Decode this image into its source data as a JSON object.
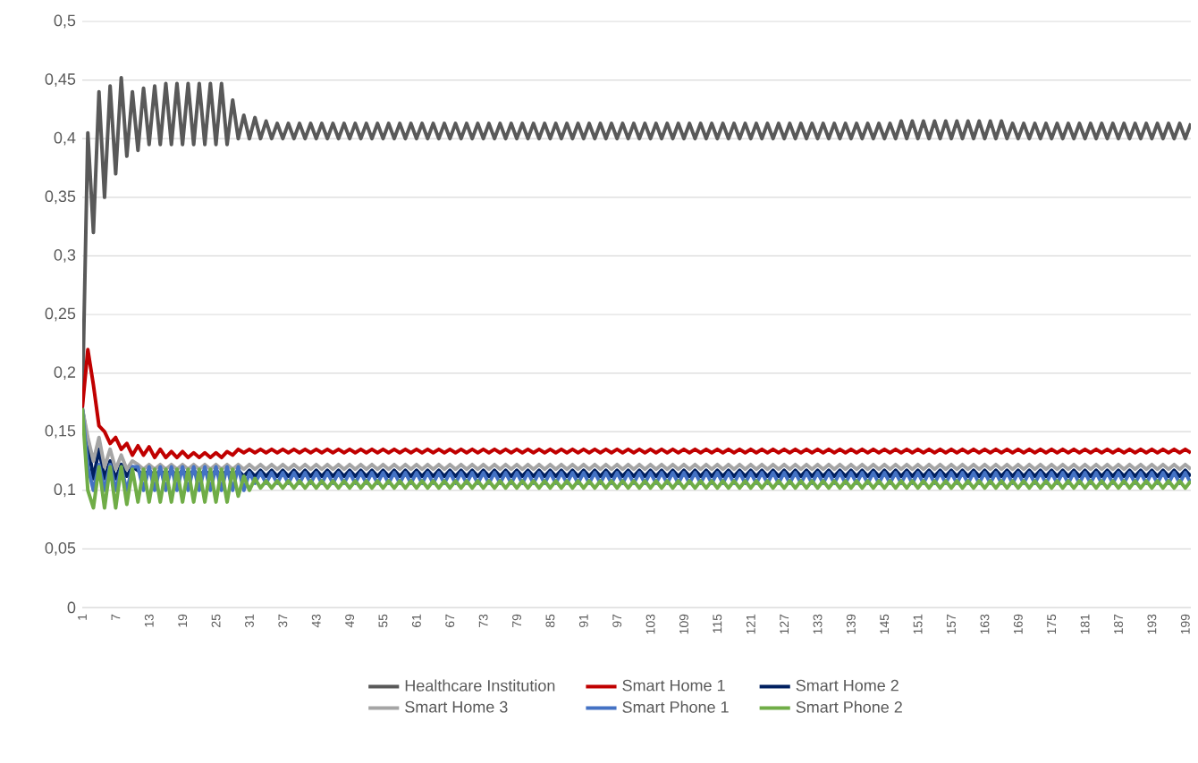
{
  "chart_data": {
    "type": "line",
    "categories": [
      "1",
      null,
      null,
      null,
      null,
      null,
      "7",
      null,
      null,
      null,
      null,
      null,
      "13",
      null,
      null,
      null,
      null,
      null,
      "19",
      null,
      null,
      null,
      null,
      null,
      "25",
      null,
      null,
      null,
      null,
      null,
      "31",
      null,
      null,
      null,
      null,
      null,
      "37",
      null,
      null,
      null,
      null,
      null,
      "43",
      null,
      null,
      null,
      null,
      null,
      "49",
      null,
      null,
      null,
      null,
      null,
      "55",
      null,
      null,
      null,
      null,
      null,
      "61",
      null,
      null,
      null,
      null,
      null,
      "67",
      null,
      null,
      null,
      null,
      null,
      "73",
      null,
      null,
      null,
      null,
      null,
      "79",
      null,
      null,
      null,
      null,
      null,
      "85",
      null,
      null,
      null,
      null,
      null,
      "91",
      null,
      null,
      null,
      null,
      null,
      "97",
      null,
      null,
      null,
      null,
      null,
      "103",
      null,
      null,
      null,
      null,
      null,
      "109",
      null,
      null,
      null,
      null,
      null,
      "115",
      null,
      null,
      null,
      null,
      null,
      "121",
      null,
      null,
      null,
      null,
      null,
      "127",
      null,
      null,
      null,
      null,
      null,
      "133",
      null,
      null,
      null,
      null,
      null,
      "139",
      null,
      null,
      null,
      null,
      null,
      "145",
      null,
      null,
      null,
      null,
      null,
      "151",
      null,
      null,
      null,
      null,
      null,
      "157",
      null,
      null,
      null,
      null,
      null,
      "163",
      null,
      null,
      null,
      null,
      null,
      "169",
      null,
      null,
      null,
      null,
      null,
      "175",
      null,
      null,
      null,
      null,
      null,
      "181",
      null,
      null,
      null,
      null,
      null,
      "187",
      null,
      null,
      null,
      null,
      null,
      "193",
      null,
      null,
      null,
      null,
      null,
      "199",
      null
    ],
    "ylim": [
      0,
      0.5
    ],
    "yticks": [
      0,
      {
        "value": 0.05,
        "label": "0,05"
      },
      {
        "value": 0.1,
        "label": "0,1"
      },
      {
        "value": 0.15,
        "label": "0,15"
      },
      {
        "value": 0.2,
        "label": "0,2"
      },
      {
        "value": 0.25,
        "label": "0,25"
      },
      {
        "value": 0.3,
        "label": "0,3"
      },
      {
        "value": 0.35,
        "label": "0,35"
      },
      {
        "value": 0.4,
        "label": "0,4"
      },
      {
        "value": 0.45,
        "label": "0,45"
      },
      {
        "value": 0.5,
        "label": "0,5"
      }
    ],
    "grid": "y",
    "legend": "bottom",
    "marker": "none",
    "line_style": "solid",
    "series": [
      {
        "name": "Healthcare Institution",
        "color": "#595959",
        "values": [
          0.17,
          0.405,
          0.32,
          0.44,
          0.35,
          0.445,
          0.37,
          0.452,
          0.385,
          0.44,
          0.39,
          0.443,
          0.395,
          0.445,
          0.395,
          0.447,
          0.395,
          0.447,
          0.395,
          0.447,
          0.395,
          0.447,
          0.395,
          0.447,
          0.395,
          0.447,
          0.395,
          0.433,
          0.4,
          0.42,
          0.4,
          0.418,
          0.4,
          0.415,
          0.4,
          0.413,
          0.4,
          0.413,
          0.4,
          0.413,
          0.4,
          0.413,
          0.4,
          0.413,
          0.4,
          0.413,
          0.4,
          0.413,
          0.4,
          0.413,
          0.4,
          0.413,
          0.4,
          0.413,
          0.4,
          0.413,
          0.4,
          0.413,
          0.4,
          0.413,
          0.4,
          0.413,
          0.4,
          0.413,
          0.4,
          0.413,
          0.4,
          0.413,
          0.4,
          0.413,
          0.4,
          0.413,
          0.4,
          0.413,
          0.4,
          0.413,
          0.4,
          0.413,
          0.4,
          0.413,
          0.4,
          0.413,
          0.4,
          0.413,
          0.4,
          0.413,
          0.4,
          0.413,
          0.4,
          0.413,
          0.4,
          0.413,
          0.4,
          0.413,
          0.4,
          0.413,
          0.4,
          0.413,
          0.4,
          0.413,
          0.4,
          0.413,
          0.4,
          0.413,
          0.4,
          0.413,
          0.4,
          0.413,
          0.4,
          0.413,
          0.4,
          0.413,
          0.4,
          0.413,
          0.4,
          0.413,
          0.4,
          0.413,
          0.4,
          0.413,
          0.4,
          0.413,
          0.4,
          0.413,
          0.4,
          0.413,
          0.4,
          0.413,
          0.4,
          0.413,
          0.4,
          0.413,
          0.4,
          0.413,
          0.4,
          0.413,
          0.4,
          0.413,
          0.4,
          0.413,
          0.4,
          0.413,
          0.4,
          0.413,
          0.4,
          0.413,
          0.4,
          0.415,
          0.4,
          0.415,
          0.4,
          0.415,
          0.4,
          0.415,
          0.4,
          0.415,
          0.4,
          0.415,
          0.4,
          0.415,
          0.4,
          0.415,
          0.4,
          0.415,
          0.4,
          0.415,
          0.4,
          0.413,
          0.4,
          0.413,
          0.4,
          0.413,
          0.4,
          0.413,
          0.4,
          0.413,
          0.4,
          0.413,
          0.4,
          0.413,
          0.4,
          0.413,
          0.4,
          0.413,
          0.4,
          0.413,
          0.4,
          0.413,
          0.4,
          0.413,
          0.4,
          0.413,
          0.4,
          0.413,
          0.4,
          0.413,
          0.4,
          0.413,
          0.4,
          0.413
        ]
      },
      {
        "name": "Smart Home 1",
        "color": "#c00000",
        "values": [
          0.17,
          0.22,
          0.19,
          0.155,
          0.15,
          0.14,
          0.145,
          0.135,
          0.14,
          0.13,
          0.138,
          0.13,
          0.137,
          0.128,
          0.135,
          0.128,
          0.133,
          0.128,
          0.133,
          0.128,
          0.132,
          0.128,
          0.132,
          0.128,
          0.132,
          0.128,
          0.133,
          0.13,
          0.135,
          0.132,
          0.135,
          0.132,
          0.135,
          0.132,
          0.135,
          0.132,
          0.135,
          0.132,
          0.135,
          0.132,
          0.135,
          0.132,
          0.135,
          0.132,
          0.135,
          0.132,
          0.135,
          0.132,
          0.135,
          0.132,
          0.135,
          0.132,
          0.135,
          0.132,
          0.135,
          0.132,
          0.135,
          0.132,
          0.135,
          0.132,
          0.135,
          0.132,
          0.135,
          0.132,
          0.135,
          0.132,
          0.135,
          0.132,
          0.135,
          0.132,
          0.135,
          0.132,
          0.135,
          0.132,
          0.135,
          0.132,
          0.135,
          0.132,
          0.135,
          0.132,
          0.135,
          0.132,
          0.135,
          0.132,
          0.135,
          0.132,
          0.135,
          0.132,
          0.135,
          0.132,
          0.135,
          0.132,
          0.135,
          0.132,
          0.135,
          0.132,
          0.135,
          0.132,
          0.135,
          0.132,
          0.135,
          0.132,
          0.135,
          0.132,
          0.135,
          0.132,
          0.135,
          0.132,
          0.135,
          0.132,
          0.135,
          0.132,
          0.135,
          0.132,
          0.135,
          0.132,
          0.135,
          0.132,
          0.135,
          0.132,
          0.135,
          0.132,
          0.135,
          0.132,
          0.135,
          0.132,
          0.135,
          0.132,
          0.135,
          0.132,
          0.135,
          0.132,
          0.135,
          0.132,
          0.135,
          0.132,
          0.135,
          0.132,
          0.135,
          0.132,
          0.135,
          0.132,
          0.135,
          0.132,
          0.135,
          0.132,
          0.135,
          0.132,
          0.135,
          0.132,
          0.135,
          0.132,
          0.135,
          0.132,
          0.135,
          0.132,
          0.135,
          0.132,
          0.135,
          0.132,
          0.135,
          0.132,
          0.135,
          0.132,
          0.135,
          0.132,
          0.135,
          0.132,
          0.135,
          0.132,
          0.135,
          0.132,
          0.135,
          0.132,
          0.135,
          0.132,
          0.135,
          0.132,
          0.135,
          0.132,
          0.135,
          0.132,
          0.135,
          0.132,
          0.135,
          0.132,
          0.135,
          0.132,
          0.135,
          0.132,
          0.135,
          0.132,
          0.135,
          0.132,
          0.135,
          0.132,
          0.135,
          0.132,
          0.135,
          0.132
        ]
      },
      {
        "name": "Smart Home 2",
        "color": "#002060",
        "values": [
          0.17,
          0.14,
          0.11,
          0.135,
          0.11,
          0.125,
          0.11,
          0.122,
          0.112,
          0.12,
          0.117,
          0.112,
          0.117,
          0.112,
          0.117,
          0.112,
          0.117,
          0.112,
          0.117,
          0.112,
          0.117,
          0.112,
          0.117,
          0.112,
          0.117,
          0.112,
          0.117,
          0.112,
          0.117,
          0.112,
          0.117,
          0.112,
          0.117,
          0.112,
          0.117,
          0.112,
          0.117,
          0.112,
          0.117,
          0.112,
          0.117,
          0.112,
          0.117,
          0.112,
          0.117,
          0.112,
          0.117,
          0.112,
          0.117,
          0.112,
          0.117,
          0.112,
          0.117,
          0.112,
          0.117,
          0.112,
          0.117,
          0.112,
          0.117,
          0.112,
          0.117,
          0.112,
          0.117,
          0.112,
          0.117,
          0.112,
          0.117,
          0.112,
          0.117,
          0.112,
          0.117,
          0.112,
          0.117,
          0.112,
          0.117,
          0.112,
          0.117,
          0.112,
          0.117,
          0.112,
          0.117,
          0.112,
          0.117,
          0.112,
          0.117,
          0.112,
          0.117,
          0.112,
          0.117,
          0.112,
          0.117,
          0.112,
          0.117,
          0.112,
          0.117,
          0.112,
          0.117,
          0.112,
          0.117,
          0.112,
          0.117,
          0.112,
          0.117,
          0.112,
          0.117,
          0.112,
          0.117,
          0.112,
          0.117,
          0.112,
          0.117,
          0.112,
          0.117,
          0.112,
          0.117,
          0.112,
          0.117,
          0.112,
          0.117,
          0.112,
          0.117,
          0.112,
          0.117,
          0.112,
          0.117,
          0.112,
          0.117,
          0.112,
          0.117,
          0.112,
          0.117,
          0.112,
          0.117,
          0.112,
          0.117,
          0.112,
          0.117,
          0.112,
          0.117,
          0.112,
          0.117,
          0.112,
          0.117,
          0.112,
          0.117,
          0.112,
          0.117,
          0.112,
          0.117,
          0.112,
          0.117,
          0.112,
          0.117,
          0.112,
          0.117,
          0.112,
          0.117,
          0.112,
          0.117,
          0.112,
          0.117,
          0.112,
          0.117,
          0.112,
          0.117,
          0.112,
          0.117,
          0.112,
          0.117,
          0.112,
          0.117,
          0.112,
          0.117,
          0.112,
          0.117,
          0.112,
          0.117,
          0.112,
          0.117,
          0.112,
          0.117,
          0.112,
          0.117,
          0.112,
          0.117,
          0.112,
          0.117,
          0.112,
          0.117,
          0.112,
          0.117,
          0.112,
          0.117,
          0.112,
          0.117,
          0.112,
          0.117,
          0.112,
          0.117,
          0.112
        ]
      },
      {
        "name": "Smart Home 3",
        "color": "#a5a5a5",
        "values": [
          0.17,
          0.145,
          0.125,
          0.145,
          0.12,
          0.135,
          0.118,
          0.13,
          0.118,
          0.125,
          0.122,
          0.118,
          0.122,
          0.118,
          0.122,
          0.118,
          0.122,
          0.118,
          0.122,
          0.118,
          0.122,
          0.118,
          0.122,
          0.118,
          0.122,
          0.118,
          0.122,
          0.118,
          0.122,
          0.118,
          0.122,
          0.118,
          0.122,
          0.118,
          0.122,
          0.118,
          0.122,
          0.118,
          0.122,
          0.118,
          0.122,
          0.118,
          0.122,
          0.118,
          0.122,
          0.118,
          0.122,
          0.118,
          0.122,
          0.118,
          0.122,
          0.118,
          0.122,
          0.118,
          0.122,
          0.118,
          0.122,
          0.118,
          0.122,
          0.118,
          0.122,
          0.118,
          0.122,
          0.118,
          0.122,
          0.118,
          0.122,
          0.118,
          0.122,
          0.118,
          0.122,
          0.118,
          0.122,
          0.118,
          0.122,
          0.118,
          0.122,
          0.118,
          0.122,
          0.118,
          0.122,
          0.118,
          0.122,
          0.118,
          0.122,
          0.118,
          0.122,
          0.118,
          0.122,
          0.118,
          0.122,
          0.118,
          0.122,
          0.118,
          0.122,
          0.118,
          0.122,
          0.118,
          0.122,
          0.118,
          0.122,
          0.118,
          0.122,
          0.118,
          0.122,
          0.118,
          0.122,
          0.118,
          0.122,
          0.118,
          0.122,
          0.118,
          0.122,
          0.118,
          0.122,
          0.118,
          0.122,
          0.118,
          0.122,
          0.118,
          0.122,
          0.118,
          0.122,
          0.118,
          0.122,
          0.118,
          0.122,
          0.118,
          0.122,
          0.118,
          0.122,
          0.118,
          0.122,
          0.118,
          0.122,
          0.118,
          0.122,
          0.118,
          0.122,
          0.118,
          0.122,
          0.118,
          0.122,
          0.118,
          0.122,
          0.118,
          0.122,
          0.118,
          0.122,
          0.118,
          0.122,
          0.118,
          0.122,
          0.118,
          0.122,
          0.118,
          0.122,
          0.118,
          0.122,
          0.118,
          0.122,
          0.118,
          0.122,
          0.118,
          0.122,
          0.118,
          0.122,
          0.118,
          0.122,
          0.118,
          0.122,
          0.118,
          0.122,
          0.118,
          0.122,
          0.118,
          0.122,
          0.118,
          0.122,
          0.118,
          0.122,
          0.118,
          0.122,
          0.118,
          0.122,
          0.118,
          0.122,
          0.118,
          0.122,
          0.118,
          0.122,
          0.118,
          0.122,
          0.118,
          0.122,
          0.118,
          0.122,
          0.118,
          0.122,
          0.118
        ]
      },
      {
        "name": "Smart Phone 1",
        "color": "#4472c4",
        "values": [
          0.17,
          0.12,
          0.1,
          0.122,
          0.1,
          0.122,
          0.1,
          0.12,
          0.1,
          0.12,
          0.12,
          0.1,
          0.12,
          0.1,
          0.12,
          0.1,
          0.12,
          0.1,
          0.12,
          0.1,
          0.12,
          0.1,
          0.12,
          0.1,
          0.12,
          0.1,
          0.12,
          0.1,
          0.12,
          0.1,
          0.115,
          0.106,
          0.115,
          0.106,
          0.115,
          0.106,
          0.115,
          0.106,
          0.115,
          0.106,
          0.115,
          0.106,
          0.115,
          0.106,
          0.115,
          0.106,
          0.115,
          0.106,
          0.115,
          0.106,
          0.115,
          0.106,
          0.115,
          0.106,
          0.115,
          0.106,
          0.115,
          0.106,
          0.115,
          0.106,
          0.115,
          0.106,
          0.115,
          0.106,
          0.115,
          0.106,
          0.115,
          0.106,
          0.115,
          0.106,
          0.115,
          0.106,
          0.115,
          0.106,
          0.115,
          0.106,
          0.115,
          0.106,
          0.115,
          0.106,
          0.115,
          0.106,
          0.115,
          0.106,
          0.115,
          0.106,
          0.115,
          0.106,
          0.115,
          0.106,
          0.115,
          0.106,
          0.115,
          0.106,
          0.115,
          0.106,
          0.115,
          0.106,
          0.115,
          0.106,
          0.115,
          0.106,
          0.115,
          0.106,
          0.115,
          0.106,
          0.115,
          0.106,
          0.115,
          0.106,
          0.115,
          0.106,
          0.115,
          0.106,
          0.115,
          0.106,
          0.115,
          0.106,
          0.115,
          0.106,
          0.115,
          0.106,
          0.115,
          0.106,
          0.115,
          0.106,
          0.115,
          0.106,
          0.115,
          0.106,
          0.115,
          0.106,
          0.115,
          0.106,
          0.115,
          0.106,
          0.115,
          0.106,
          0.115,
          0.106,
          0.115,
          0.106,
          0.115,
          0.106,
          0.115,
          0.106,
          0.115,
          0.106,
          0.115,
          0.106,
          0.115,
          0.106,
          0.115,
          0.106,
          0.115,
          0.106,
          0.115,
          0.106,
          0.115,
          0.106,
          0.115,
          0.106,
          0.115,
          0.106,
          0.115,
          0.106,
          0.115,
          0.106,
          0.115,
          0.106,
          0.115,
          0.106,
          0.115,
          0.106,
          0.115,
          0.106,
          0.115,
          0.106,
          0.115,
          0.106,
          0.115,
          0.106,
          0.115,
          0.106,
          0.115,
          0.106,
          0.115,
          0.106,
          0.115,
          0.106,
          0.115,
          0.106,
          0.115,
          0.106,
          0.115,
          0.106,
          0.115,
          0.106,
          0.115,
          0.106
        ]
      },
      {
        "name": "Smart Phone 2",
        "color": "#70ad47",
        "values": [
          0.17,
          0.1,
          0.085,
          0.12,
          0.085,
          0.12,
          0.085,
          0.12,
          0.088,
          0.118,
          0.09,
          0.118,
          0.09,
          0.118,
          0.09,
          0.118,
          0.09,
          0.118,
          0.09,
          0.118,
          0.09,
          0.118,
          0.09,
          0.118,
          0.09,
          0.118,
          0.09,
          0.118,
          0.095,
          0.112,
          0.1,
          0.11,
          0.102,
          0.108,
          0.102,
          0.108,
          0.102,
          0.108,
          0.102,
          0.108,
          0.102,
          0.108,
          0.102,
          0.108,
          0.102,
          0.108,
          0.102,
          0.108,
          0.102,
          0.108,
          0.102,
          0.108,
          0.102,
          0.108,
          0.102,
          0.108,
          0.102,
          0.108,
          0.102,
          0.108,
          0.102,
          0.108,
          0.102,
          0.108,
          0.102,
          0.108,
          0.102,
          0.108,
          0.102,
          0.108,
          0.102,
          0.108,
          0.102,
          0.108,
          0.102,
          0.108,
          0.102,
          0.108,
          0.102,
          0.108,
          0.102,
          0.108,
          0.102,
          0.108,
          0.102,
          0.108,
          0.102,
          0.108,
          0.102,
          0.108,
          0.102,
          0.108,
          0.102,
          0.108,
          0.102,
          0.108,
          0.102,
          0.108,
          0.102,
          0.108,
          0.102,
          0.108,
          0.102,
          0.108,
          0.102,
          0.108,
          0.102,
          0.108,
          0.102,
          0.108,
          0.102,
          0.108,
          0.102,
          0.108,
          0.102,
          0.108,
          0.102,
          0.108,
          0.102,
          0.108,
          0.102,
          0.108,
          0.102,
          0.108,
          0.102,
          0.108,
          0.102,
          0.108,
          0.102,
          0.108,
          0.102,
          0.108,
          0.102,
          0.108,
          0.102,
          0.108,
          0.102,
          0.108,
          0.102,
          0.108,
          0.102,
          0.108,
          0.102,
          0.108,
          0.102,
          0.108,
          0.102,
          0.108,
          0.102,
          0.108,
          0.102,
          0.108,
          0.102,
          0.108,
          0.102,
          0.108,
          0.102,
          0.108,
          0.102,
          0.108,
          0.102,
          0.108,
          0.102,
          0.108,
          0.102,
          0.108,
          0.102,
          0.108,
          0.102,
          0.108,
          0.102,
          0.108,
          0.102,
          0.108,
          0.102,
          0.108,
          0.102,
          0.108,
          0.102,
          0.108,
          0.102,
          0.108,
          0.102,
          0.108,
          0.102,
          0.108,
          0.102,
          0.108,
          0.102,
          0.108,
          0.102,
          0.108,
          0.102,
          0.108,
          0.102,
          0.108,
          0.102,
          0.108,
          0.102,
          0.108
        ]
      }
    ]
  }
}
